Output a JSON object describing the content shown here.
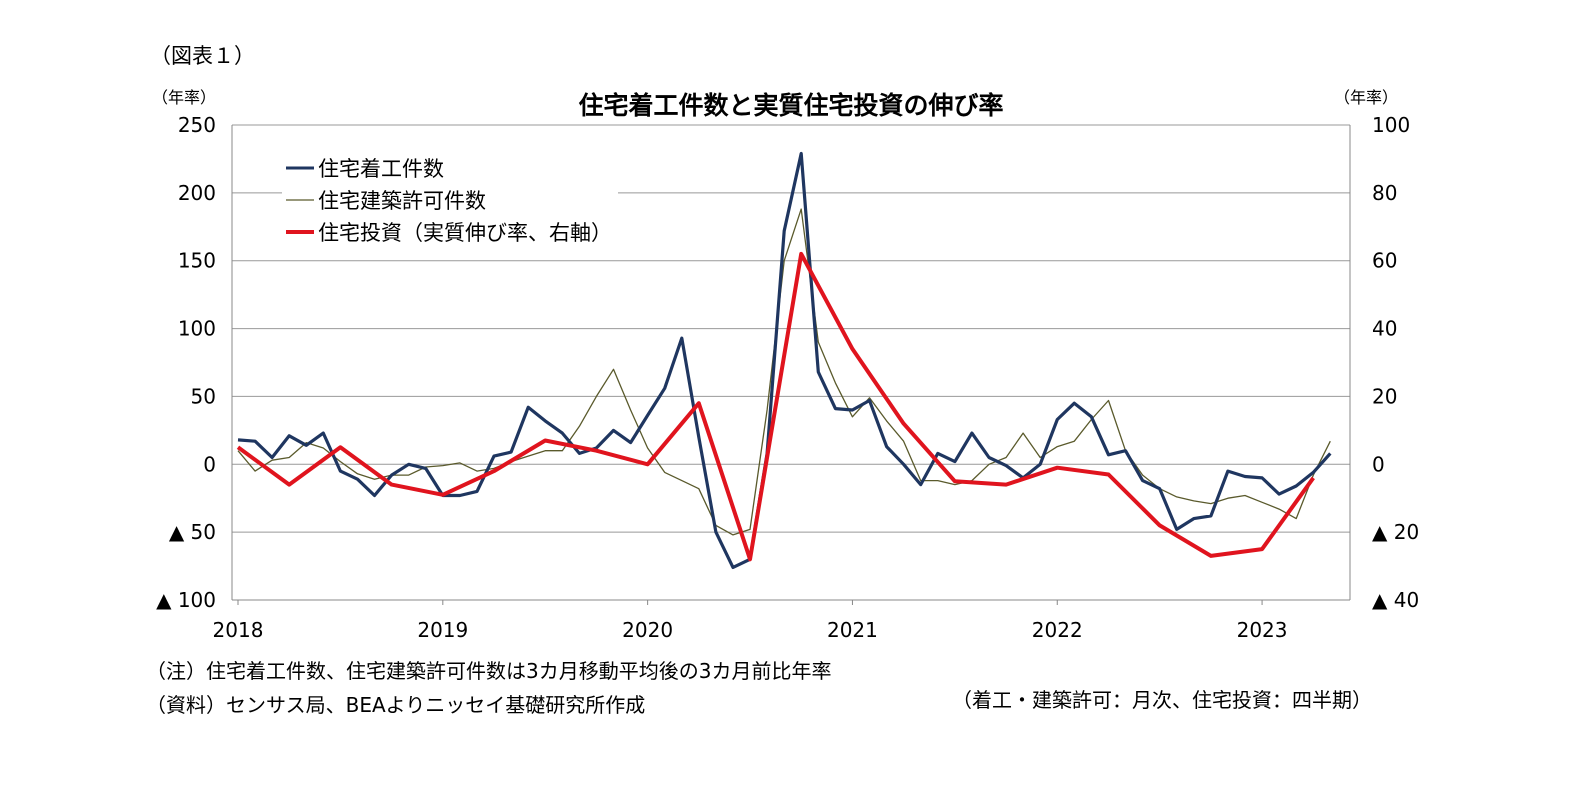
{
  "figure_label": "（図表１）",
  "unit_left": "（年率）",
  "unit_right": "（年率）",
  "colors": {
    "starts": "#1f3660",
    "permits": "#5a5a2c",
    "investment": "#e0141e",
    "grid": "#999999"
  },
  "notes": {
    "note": "（注）住宅着工件数、住宅建築許可件数は3カ月移動平均後の3カ月前比年率",
    "source": "（資料）センサス局、BEAよりニッセイ基礎研究所作成",
    "frequency": "（着工・建築許可：月次、住宅投資：四半期）"
  },
  "chart_data": {
    "type": "line",
    "title": "住宅着工件数と実質住宅投資の伸び率",
    "x_tick_labels": [
      "2018",
      "2019",
      "2020",
      "2021",
      "2022",
      "2023"
    ],
    "y_left": {
      "range": [
        -100,
        250
      ],
      "ticks": [
        250,
        200,
        150,
        100,
        50,
        0,
        -50,
        -100
      ],
      "tick_labels": [
        "250",
        "200",
        "150",
        "100",
        "50",
        "0",
        "▲ 50",
        "▲ 100"
      ]
    },
    "y_right": {
      "range": [
        -40,
        100
      ],
      "ticks": [
        100,
        80,
        60,
        40,
        20,
        0,
        -20,
        -40
      ],
      "tick_labels": [
        "100",
        "80",
        "60",
        "40",
        "20",
        "0",
        "▲ 20",
        "▲ 40"
      ]
    },
    "grid": "horizontal",
    "legend_position": "top-left",
    "series": [
      {
        "name": "住宅着工件数",
        "axis": "left",
        "x_start": 2018.0,
        "x_step_months": 1,
        "values": [
          18,
          17,
          5,
          21,
          14,
          23,
          -5,
          -11,
          -23,
          -8,
          0,
          -3,
          -23,
          -23,
          -20,
          6,
          9,
          42,
          32,
          23,
          8,
          12,
          25,
          16,
          36,
          56,
          93,
          20,
          -50,
          -76,
          -70,
          8,
          172,
          229,
          68,
          41,
          40,
          47,
          13,
          0,
          -15,
          8,
          2,
          23,
          5,
          -1,
          -10,
          0,
          33,
          45,
          35,
          7,
          10,
          -12,
          -18,
          -48,
          -40,
          -38,
          -5,
          -9,
          -10,
          -22,
          -16,
          -6,
          8
        ]
      },
      {
        "name": "住宅建築許可件数",
        "axis": "left",
        "x_start": 2018.0,
        "x_step_months": 1,
        "values": [
          10,
          -5,
          3,
          5,
          16,
          12,
          2,
          -7,
          -11,
          -8,
          -8,
          -2,
          -1,
          1,
          -5,
          -3,
          2,
          6,
          10,
          10,
          28,
          50,
          70,
          40,
          12,
          -6,
          -12,
          -18,
          -45,
          -52,
          -48,
          40,
          150,
          188,
          90,
          60,
          35,
          49,
          32,
          17,
          -12,
          -12,
          -15,
          -12,
          0,
          5,
          23,
          5,
          13,
          17,
          33,
          47,
          10,
          -8,
          -18,
          -24,
          -27,
          -29,
          -25,
          -23,
          -28,
          -33,
          -40,
          -8,
          17
        ]
      },
      {
        "name": "住宅投資（実質伸び率、右軸）",
        "axis": "right",
        "x": [
          2018.0,
          2018.25,
          2018.5,
          2018.75,
          2019.0,
          2019.25,
          2019.5,
          2019.75,
          2020.0,
          2020.25,
          2020.5,
          2020.75,
          2021.0,
          2021.25,
          2021.5,
          2021.75,
          2022.0,
          2022.25,
          2022.5,
          2022.75,
          2023.0,
          2023.25
        ],
        "values": [
          5,
          -6,
          5,
          -6,
          -9,
          -2,
          7,
          4,
          0,
          18,
          -28,
          62,
          34,
          12,
          -5,
          -6,
          -1,
          -3,
          -18,
          -27,
          -25,
          -4
        ]
      }
    ]
  }
}
